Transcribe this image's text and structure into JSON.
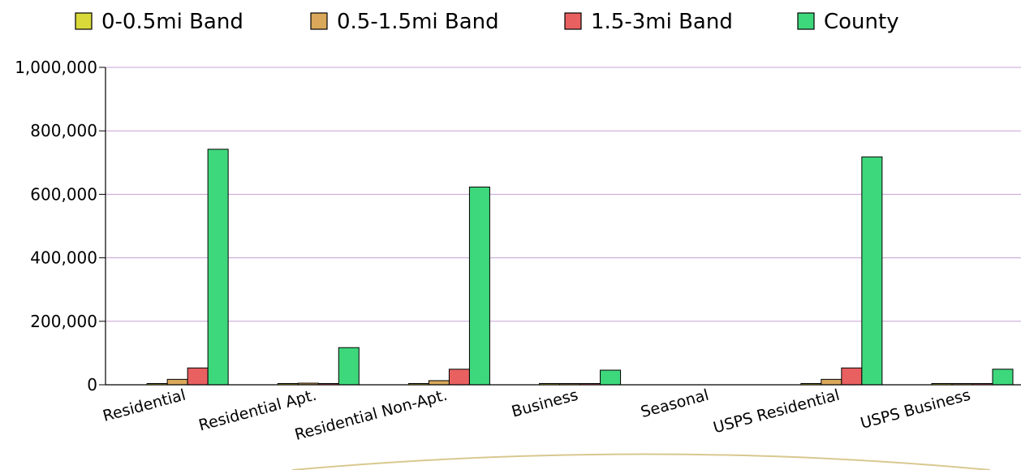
{
  "chart_data": {
    "type": "bar",
    "categories": [
      "Residential",
      "Residential Apt.",
      "Residential Non-Apt.",
      "Business",
      "Seasonal",
      "USPS Residential",
      "USPS Business"
    ],
    "series": [
      {
        "name": "0-0.5mi Band",
        "color": "#d9d93a",
        "values": [
          2000,
          1000,
          2000,
          500,
          0,
          2000,
          500
        ]
      },
      {
        "name": "0.5-1.5mi Band",
        "color": "#d9a85a",
        "values": [
          17000,
          5000,
          13000,
          1500,
          0,
          17000,
          1500
        ]
      },
      {
        "name": "1.5-3mi Band",
        "color": "#e86060",
        "values": [
          53000,
          2000,
          49000,
          3000,
          0,
          53000,
          3000
        ]
      },
      {
        "name": "County",
        "color": "#3ed87c",
        "values": [
          742000,
          117000,
          623000,
          46000,
          0,
          718000,
          49000
        ]
      }
    ],
    "ylim": [
      0,
      1000000
    ],
    "yticks": [
      0,
      200000,
      400000,
      600000,
      800000,
      1000000
    ],
    "ytick_labels": [
      "0",
      "200,000",
      "400,000",
      "600,000",
      "800,000",
      "1,000,000"
    ],
    "grid": true,
    "grid_color": "#c8a0d8",
    "legend_position": "top"
  }
}
